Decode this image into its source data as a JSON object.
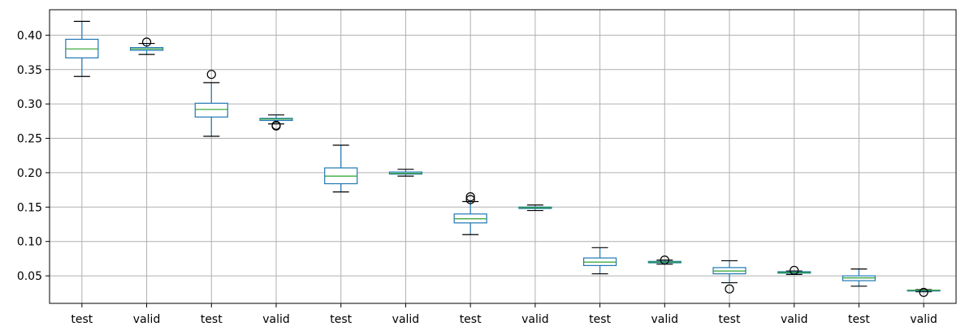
{
  "chart_data": {
    "type": "boxplot",
    "title": "",
    "xlabel": "",
    "ylabel": "",
    "ylim": [
      0.01,
      0.437
    ],
    "yticks": [
      "0.05",
      "0.10",
      "0.15",
      "0.20",
      "0.25",
      "0.30",
      "0.35",
      "0.40"
    ],
    "grid": true,
    "legend": "none",
    "colors": {
      "box": "#1f77b4",
      "median": "#2ca02c",
      "whisker": "#1f77b4",
      "cap": "#000000",
      "flier": "#000000",
      "grid": "#b0b0b0"
    },
    "categories": [
      "test",
      "valid",
      "test",
      "valid",
      "test",
      "valid",
      "test",
      "valid",
      "test",
      "valid",
      "test",
      "valid",
      "test",
      "valid"
    ],
    "boxes": [
      {
        "label": "test",
        "whislo": 0.34,
        "q1": 0.367,
        "med": 0.38,
        "q3": 0.394,
        "whishi": 0.42,
        "fliers": []
      },
      {
        "label": "valid",
        "whislo": 0.372,
        "q1": 0.378,
        "med": 0.38,
        "q3": 0.382,
        "whishi": 0.388,
        "fliers": [
          0.39
        ]
      },
      {
        "label": "test",
        "whislo": 0.253,
        "q1": 0.281,
        "med": 0.292,
        "q3": 0.301,
        "whishi": 0.331,
        "fliers": [
          0.343
        ]
      },
      {
        "label": "valid",
        "whislo": 0.271,
        "q1": 0.276,
        "med": 0.278,
        "q3": 0.279,
        "whishi": 0.284,
        "fliers": [
          0.268,
          0.269
        ]
      },
      {
        "label": "test",
        "whislo": 0.172,
        "q1": 0.184,
        "med": 0.195,
        "q3": 0.207,
        "whishi": 0.24,
        "fliers": []
      },
      {
        "label": "valid",
        "whislo": 0.195,
        "q1": 0.198,
        "med": 0.199,
        "q3": 0.201,
        "whishi": 0.205,
        "fliers": []
      },
      {
        "label": "test",
        "whislo": 0.11,
        "q1": 0.127,
        "med": 0.133,
        "q3": 0.14,
        "whishi": 0.158,
        "fliers": [
          0.161,
          0.165
        ]
      },
      {
        "label": "valid",
        "whislo": 0.145,
        "q1": 0.148,
        "med": 0.149,
        "q3": 0.15,
        "whishi": 0.153,
        "fliers": []
      },
      {
        "label": "test",
        "whislo": 0.053,
        "q1": 0.065,
        "med": 0.07,
        "q3": 0.076,
        "whishi": 0.091,
        "fliers": []
      },
      {
        "label": "valid",
        "whislo": 0.067,
        "q1": 0.069,
        "med": 0.07,
        "q3": 0.071,
        "whishi": 0.073,
        "fliers": [
          0.073
        ]
      },
      {
        "label": "test",
        "whislo": 0.04,
        "q1": 0.053,
        "med": 0.057,
        "q3": 0.062,
        "whishi": 0.072,
        "fliers": [
          0.031
        ]
      },
      {
        "label": "valid",
        "whislo": 0.052,
        "q1": 0.054,
        "med": 0.055,
        "q3": 0.056,
        "whishi": 0.057,
        "fliers": [
          0.058
        ]
      },
      {
        "label": "test",
        "whislo": 0.035,
        "q1": 0.043,
        "med": 0.047,
        "q3": 0.05,
        "whishi": 0.06,
        "fliers": []
      },
      {
        "label": "valid",
        "whislo": 0.027,
        "q1": 0.028,
        "med": 0.029,
        "q3": 0.029,
        "whishi": 0.03,
        "fliers": [
          0.026
        ]
      }
    ]
  }
}
